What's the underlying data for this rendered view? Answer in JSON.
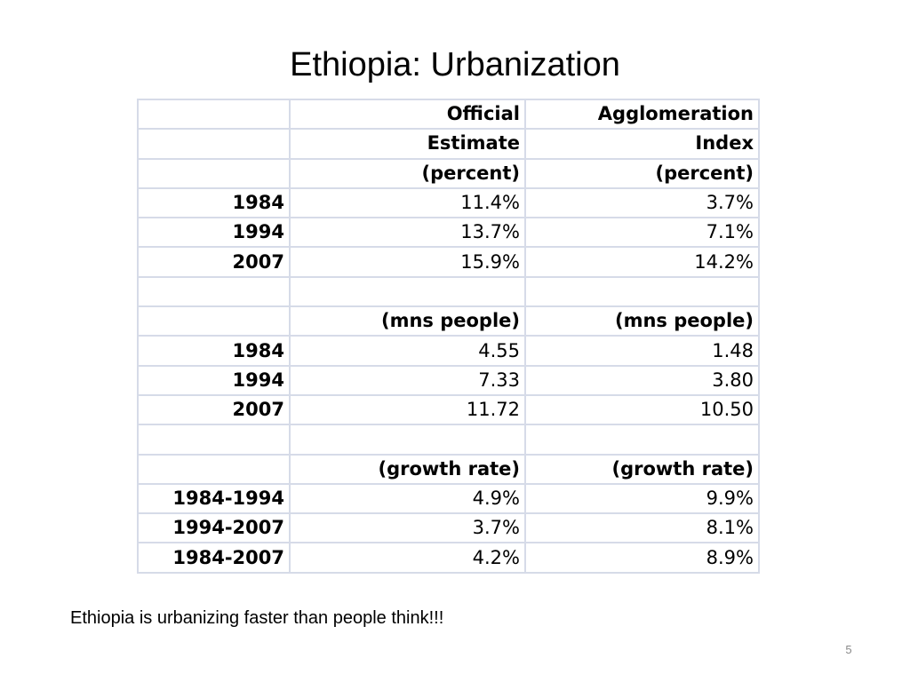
{
  "slide": {
    "title": "Ethiopia: Urbanization",
    "footnote": "Ethiopia is urbanizing faster than people think!!!",
    "page_number": "5"
  },
  "table": {
    "rows": [
      [
        "",
        "Official",
        "Agglomeration"
      ],
      [
        "",
        "Estimate",
        "Index"
      ],
      [
        "",
        "(percent)",
        "(percent)"
      ],
      [
        "1984",
        "11.4%",
        "3.7%"
      ],
      [
        "1994",
        "13.7%",
        "7.1%"
      ],
      [
        "2007",
        "15.9%",
        "14.2%"
      ],
      [
        "",
        "",
        ""
      ],
      [
        "",
        "(mns people)",
        "(mns people)"
      ],
      [
        "1984",
        "4.55",
        "1.48"
      ],
      [
        "1994",
        "7.33",
        "3.80"
      ],
      [
        "2007",
        "11.72",
        "10.50"
      ],
      [
        "",
        "",
        ""
      ],
      [
        "",
        "(growth rate)",
        "(growth rate)"
      ],
      [
        "1984-1994",
        "4.9%",
        "9.9%"
      ],
      [
        "1994-2007",
        "3.7%",
        "8.1%"
      ],
      [
        "1984-2007",
        "4.2%",
        "8.9%"
      ]
    ]
  }
}
